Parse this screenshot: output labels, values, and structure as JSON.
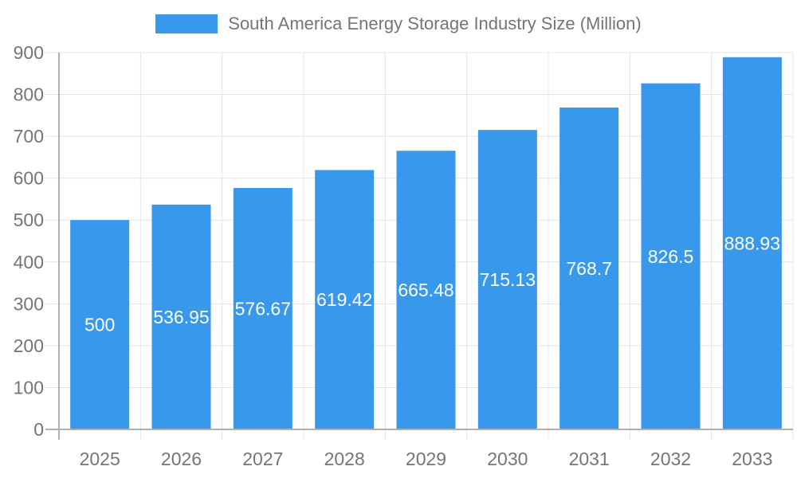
{
  "chart_data": {
    "type": "bar",
    "title": "South America Energy Storage Industry Size (Million)",
    "xlabel": "",
    "ylabel": "",
    "categories": [
      "2025",
      "2026",
      "2027",
      "2028",
      "2029",
      "2030",
      "2031",
      "2032",
      "2033"
    ],
    "series": [
      {
        "name": "South America Energy Storage Industry Size (Million)",
        "values": [
          500,
          536.95,
          576.67,
          619.42,
          665.48,
          715.13,
          768.7,
          826.5,
          888.93
        ]
      }
    ],
    "value_labels": [
      "500",
      "536.95",
      "576.67",
      "619.42",
      "665.48",
      "715.13",
      "768.7",
      "826.5",
      "888.93"
    ],
    "ylim": [
      0,
      900
    ],
    "yticks": [
      0,
      100,
      200,
      300,
      400,
      500,
      600,
      700,
      800,
      900
    ],
    "grid": true,
    "legend_position": "top-center",
    "colors": {
      "bar": "#3899EC",
      "value_label": "#FFFFFF",
      "axis_text": "#757575",
      "legend_text": "#757575",
      "gridline": "#E4E4E4",
      "axis_line": "#B0B0B0",
      "background": "#FFFFFF"
    }
  }
}
